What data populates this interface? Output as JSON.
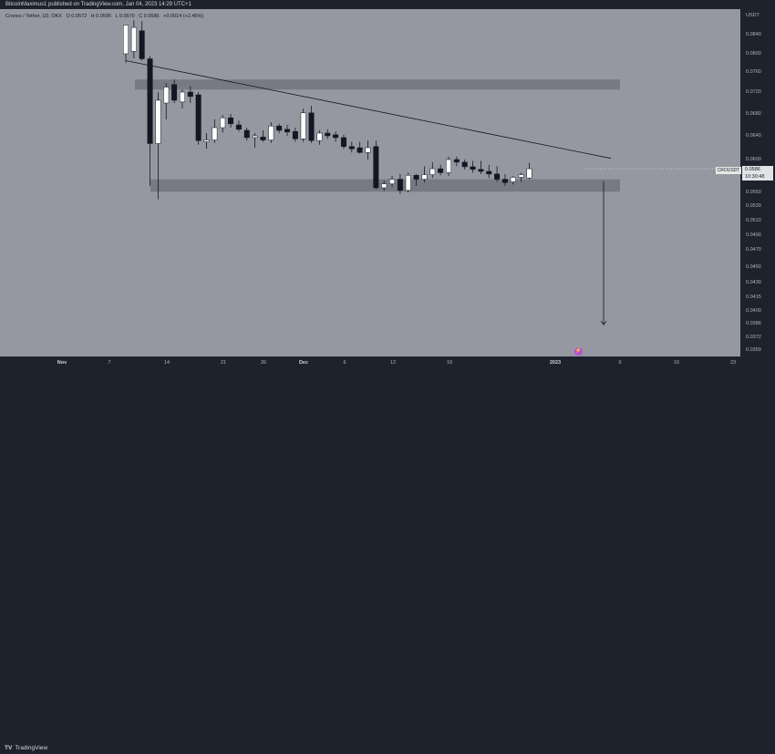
{
  "header": {
    "published": "BitcoinMaximus1 published on TradingView.com, Jan 04, 2023 14:29 UTC+1"
  },
  "legend": {
    "symbol": "Cronos / Tether, 1D, OKX",
    "open": "O 0.0572",
    "high": "H 0.0595",
    "low": "L 0.0570",
    "close": "C 0.0586",
    "change": "+0.0014 (+2.45%)"
  },
  "price_axis": {
    "unit": "USDT",
    "ticks": [
      "0.0840",
      "0.0800",
      "0.0760",
      "0.0720",
      "0.0680",
      "0.0640",
      "0.0600",
      "0.0550",
      "0.0530",
      "0.0510",
      "0.0490",
      "0.0470",
      "0.0450",
      "0.0430",
      "0.0415",
      "0.0400",
      "0.0386",
      "0.0372",
      "0.0359"
    ]
  },
  "time_axis": {
    "ticks": [
      "Nov",
      "7",
      "14",
      "21",
      "26",
      "Dec",
      "6",
      "12",
      "19",
      "2023",
      "9",
      "16",
      "23"
    ]
  },
  "current_price": {
    "symbol": "CROUSDT",
    "price": "0.0586",
    "countdown": "10:30:48"
  },
  "footer": {
    "brand": "TradingView"
  },
  "colors": {
    "plot_bg": "#9598a1",
    "up_candle": "#ffffff",
    "down_candle": "#131722",
    "zone": "#6d7079",
    "line": "#131722"
  },
  "chart_data": {
    "type": "candlestick",
    "title": "Cronos / Tether, 1D, OKX",
    "ylabel": "USDT",
    "ylim": [
      0.0359,
      0.088
    ],
    "zones": [
      {
        "low": 0.0725,
        "high": 0.0745
      },
      {
        "low": 0.0551,
        "high": 0.057
      }
    ],
    "trendline": {
      "from": {
        "candle": 0,
        "price": 0.0785
      },
      "to": {
        "candle": 57,
        "price": 0.0602
      }
    },
    "arrow": {
      "from_price": 0.0567,
      "to_price": 0.0385
    },
    "candles": [
      {
        "o": 0.08,
        "h": 0.086,
        "l": 0.078,
        "c": 0.086
      },
      {
        "o": 0.0805,
        "h": 0.087,
        "l": 0.079,
        "c": 0.0855
      },
      {
        "o": 0.0848,
        "h": 0.0868,
        "l": 0.0785,
        "c": 0.0789
      },
      {
        "o": 0.0789,
        "h": 0.0795,
        "l": 0.056,
        "c": 0.0627
      },
      {
        "o": 0.0627,
        "h": 0.072,
        "l": 0.054,
        "c": 0.0705
      },
      {
        "o": 0.07,
        "h": 0.0738,
        "l": 0.067,
        "c": 0.073
      },
      {
        "o": 0.0735,
        "h": 0.0745,
        "l": 0.07,
        "c": 0.0705
      },
      {
        "o": 0.0702,
        "h": 0.0725,
        "l": 0.069,
        "c": 0.072
      },
      {
        "o": 0.072,
        "h": 0.0732,
        "l": 0.07,
        "c": 0.0712
      },
      {
        "o": 0.0715,
        "h": 0.072,
        "l": 0.0625,
        "c": 0.0632
      },
      {
        "o": 0.063,
        "h": 0.0645,
        "l": 0.0618,
        "c": 0.0633
      },
      {
        "o": 0.0633,
        "h": 0.067,
        "l": 0.0628,
        "c": 0.0655
      },
      {
        "o": 0.0655,
        "h": 0.0678,
        "l": 0.0646,
        "c": 0.0673
      },
      {
        "o": 0.0673,
        "h": 0.068,
        "l": 0.0655,
        "c": 0.0662
      },
      {
        "o": 0.066,
        "h": 0.0668,
        "l": 0.0648,
        "c": 0.0652
      },
      {
        "o": 0.065,
        "h": 0.0655,
        "l": 0.0632,
        "c": 0.0637
      },
      {
        "o": 0.0637,
        "h": 0.0645,
        "l": 0.062,
        "c": 0.064
      },
      {
        "o": 0.0638,
        "h": 0.065,
        "l": 0.063,
        "c": 0.0633
      },
      {
        "o": 0.0633,
        "h": 0.0665,
        "l": 0.0628,
        "c": 0.0658
      },
      {
        "o": 0.0658,
        "h": 0.0662,
        "l": 0.0645,
        "c": 0.065
      },
      {
        "o": 0.0652,
        "h": 0.066,
        "l": 0.064,
        "c": 0.0647
      },
      {
        "o": 0.0648,
        "h": 0.0655,
        "l": 0.063,
        "c": 0.0635
      },
      {
        "o": 0.0635,
        "h": 0.069,
        "l": 0.063,
        "c": 0.0682
      },
      {
        "o": 0.0682,
        "h": 0.0695,
        "l": 0.0628,
        "c": 0.0632
      },
      {
        "o": 0.0632,
        "h": 0.065,
        "l": 0.0625,
        "c": 0.0645
      },
      {
        "o": 0.0645,
        "h": 0.0652,
        "l": 0.0635,
        "c": 0.064
      },
      {
        "o": 0.0642,
        "h": 0.0648,
        "l": 0.063,
        "c": 0.0637
      },
      {
        "o": 0.0637,
        "h": 0.0642,
        "l": 0.0618,
        "c": 0.0622
      },
      {
        "o": 0.0622,
        "h": 0.063,
        "l": 0.0612,
        "c": 0.0618
      },
      {
        "o": 0.062,
        "h": 0.063,
        "l": 0.061,
        "c": 0.0612
      },
      {
        "o": 0.0612,
        "h": 0.0632,
        "l": 0.06,
        "c": 0.062
      },
      {
        "o": 0.0622,
        "h": 0.0632,
        "l": 0.0555,
        "c": 0.0557
      },
      {
        "o": 0.0557,
        "h": 0.0568,
        "l": 0.0552,
        "c": 0.0563
      },
      {
        "o": 0.0563,
        "h": 0.0575,
        "l": 0.0558,
        "c": 0.057
      },
      {
        "o": 0.057,
        "h": 0.0578,
        "l": 0.0548,
        "c": 0.0553
      },
      {
        "o": 0.0553,
        "h": 0.058,
        "l": 0.055,
        "c": 0.0576
      },
      {
        "o": 0.0576,
        "h": 0.0578,
        "l": 0.056,
        "c": 0.057
      },
      {
        "o": 0.057,
        "h": 0.059,
        "l": 0.0565,
        "c": 0.0577
      },
      {
        "o": 0.0577,
        "h": 0.0596,
        "l": 0.0572,
        "c": 0.0586
      },
      {
        "o": 0.0586,
        "h": 0.0592,
        "l": 0.0576,
        "c": 0.058
      },
      {
        "o": 0.058,
        "h": 0.0605,
        "l": 0.0575,
        "c": 0.06
      },
      {
        "o": 0.06,
        "h": 0.0605,
        "l": 0.059,
        "c": 0.0596
      },
      {
        "o": 0.0596,
        "h": 0.06,
        "l": 0.0585,
        "c": 0.0589
      },
      {
        "o": 0.0589,
        "h": 0.0598,
        "l": 0.058,
        "c": 0.0585
      },
      {
        "o": 0.0585,
        "h": 0.0598,
        "l": 0.0578,
        "c": 0.0582
      },
      {
        "o": 0.0582,
        "h": 0.0592,
        "l": 0.0572,
        "c": 0.0578
      },
      {
        "o": 0.0578,
        "h": 0.059,
        "l": 0.0566,
        "c": 0.057
      },
      {
        "o": 0.057,
        "h": 0.0578,
        "l": 0.056,
        "c": 0.0565
      },
      {
        "o": 0.0566,
        "h": 0.0575,
        "l": 0.0562,
        "c": 0.0573
      },
      {
        "o": 0.0573,
        "h": 0.058,
        "l": 0.0566,
        "c": 0.0577
      },
      {
        "o": 0.0572,
        "h": 0.0595,
        "l": 0.057,
        "c": 0.0586
      }
    ]
  }
}
